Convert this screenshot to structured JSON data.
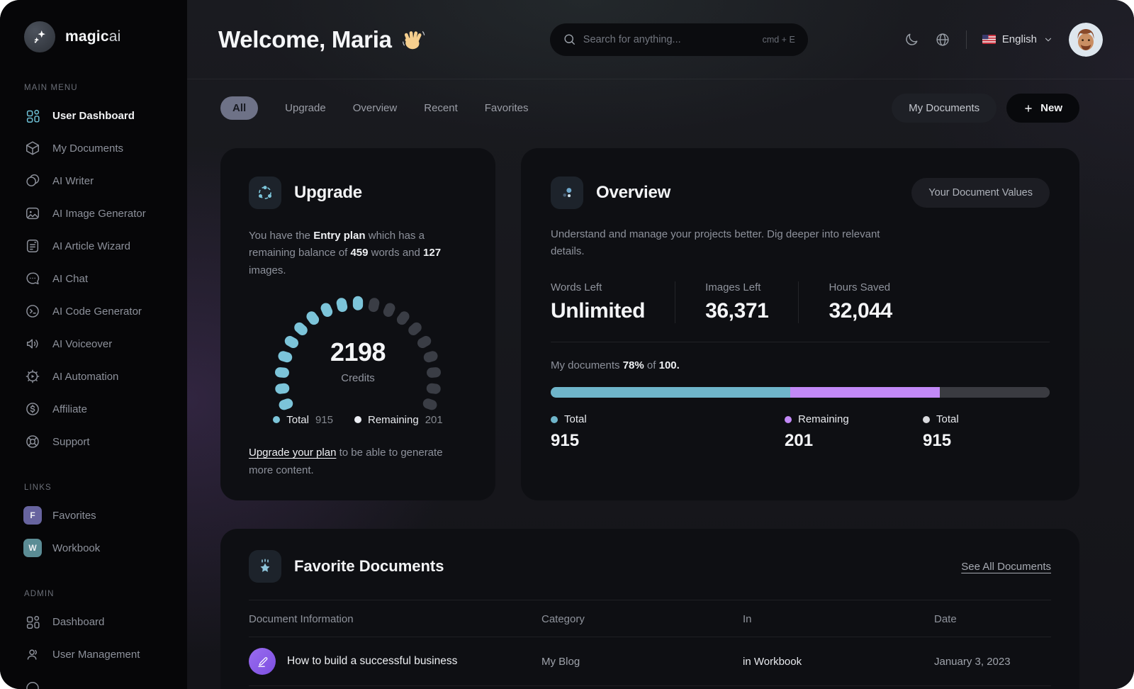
{
  "app": {
    "brand_bold": "magic",
    "brand_light": "ai"
  },
  "sidebar": {
    "sections": [
      {
        "label": "MAIN MENU",
        "items": [
          {
            "label": "User Dashboard",
            "active": true
          },
          {
            "label": "My Documents"
          },
          {
            "label": "AI Writer"
          },
          {
            "label": "AI Image Generator"
          },
          {
            "label": "AI Article Wizard"
          },
          {
            "label": "AI Chat"
          },
          {
            "label": "AI Code Generator"
          },
          {
            "label": "AI Voiceover"
          },
          {
            "label": "AI Automation"
          },
          {
            "label": "Affiliate"
          },
          {
            "label": "Support"
          }
        ]
      },
      {
        "label": "LINKS",
        "items": [
          {
            "label": "Favorites",
            "badge": "F",
            "badge_color": "#67649f"
          },
          {
            "label": "Workbook",
            "badge": "W",
            "badge_color": "#5b8c95"
          }
        ]
      },
      {
        "label": "ADMIN",
        "items": [
          {
            "label": "Dashboard"
          },
          {
            "label": "User Management"
          }
        ]
      }
    ]
  },
  "header": {
    "greeting": "Welcome, Maria",
    "wave_emoji": "waving-hand",
    "search_placeholder": "Search for anything...",
    "search_shortcut": "cmd + E",
    "language": "English"
  },
  "tabs": {
    "items": [
      {
        "label": "All",
        "active": true
      },
      {
        "label": "Upgrade"
      },
      {
        "label": "Overview"
      },
      {
        "label": "Recent"
      },
      {
        "label": "Favorites"
      }
    ],
    "my_documents_button": "My Documents",
    "new_button": "New"
  },
  "upgrade_card": {
    "title": "Upgrade",
    "body": {
      "t1": "You have the ",
      "b1": "Entry plan",
      "t2": " which has a remaining balance of ",
      "b2": "459",
      "t3": " words and ",
      "b3": "127",
      "t4": " images."
    },
    "gauge": {
      "value": "2198",
      "unit": "Credits",
      "segments": 19,
      "filled": 10,
      "filled_color": "#7cc4d9",
      "empty_color": "#3a3d45"
    },
    "legend": [
      {
        "label": "Total",
        "value": "915",
        "color": "#7cc4d9"
      },
      {
        "label": "Remaining",
        "value": "201",
        "color": "#eceef4"
      }
    ],
    "footer": {
      "link": "Upgrade your plan",
      "rest": " to be able to generate more content."
    }
  },
  "overview_card": {
    "title": "Overview",
    "values_button": "Your Document Values",
    "description": "Understand and manage your projects better. Dig deeper into relevant details.",
    "stats": [
      {
        "label": "Words Left",
        "value": "Unlimited"
      },
      {
        "label": "Images Left",
        "value": "36,371"
      },
      {
        "label": "Hours Saved",
        "value": "32,044"
      }
    ],
    "docs_line": {
      "t1": "My documents ",
      "b1": "78%",
      "t2": " of ",
      "b2": "100."
    },
    "progress": {
      "segments": [
        {
          "label": "Total",
          "pct": 48,
          "color": "#6fb5ca"
        },
        {
          "label": "Remaining",
          "pct": 30,
          "color": "#c289f7"
        },
        {
          "label": "Rest",
          "pct": 22,
          "color": "#3a3b41"
        }
      ]
    },
    "legend": [
      {
        "label": "Total",
        "value": "915",
        "color": "#6fb5ca"
      },
      {
        "label": "Remaining",
        "value": "201",
        "color": "#c289f7"
      },
      {
        "label": "Total",
        "value": "915",
        "color": "#d9dade"
      }
    ]
  },
  "favorites_section": {
    "title": "Favorite Documents",
    "see_all_link": "See All Documents",
    "columns": [
      "Document Information",
      "Category",
      "In",
      "Date"
    ],
    "rows": [
      {
        "title": "How to build a successful business",
        "category": "My Blog",
        "in": "in Workbook",
        "date": "January 3, 2023"
      }
    ]
  }
}
